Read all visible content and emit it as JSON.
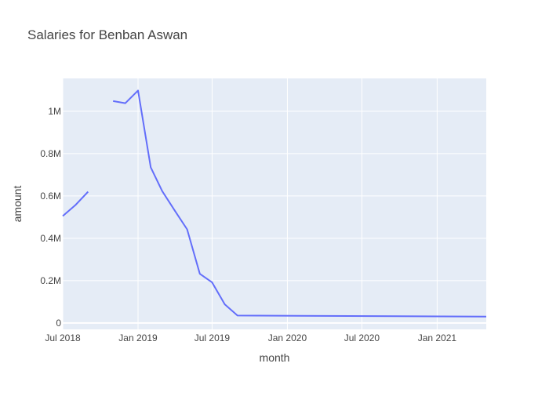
{
  "chart_data": {
    "type": "line",
    "title": "Salaries for Benban Aswan",
    "xlabel": "month",
    "ylabel": "amount",
    "x_type": "date",
    "xlim": [
      "2018-07-01",
      "2021-05-01"
    ],
    "ylim": [
      -30000,
      1155000
    ],
    "x_ticks": [
      {
        "value": "2018-07-01",
        "label": "Jul 2018"
      },
      {
        "value": "2019-01-01",
        "label": "Jan 2019"
      },
      {
        "value": "2019-07-01",
        "label": "Jul 2019"
      },
      {
        "value": "2020-01-01",
        "label": "Jan 2020"
      },
      {
        "value": "2020-07-01",
        "label": "Jul 2020"
      },
      {
        "value": "2021-01-01",
        "label": "Jan 2021"
      }
    ],
    "y_ticks": [
      {
        "value": 0,
        "label": "0"
      },
      {
        "value": 200000,
        "label": "0.2M"
      },
      {
        "value": 400000,
        "label": "0.4M"
      },
      {
        "value": 600000,
        "label": "0.6M"
      },
      {
        "value": 800000,
        "label": "0.8M"
      },
      {
        "value": 1000000,
        "label": "1M"
      }
    ],
    "grid": true,
    "colors": {
      "line": "#636efa",
      "plot_bg": "#e5ecf6",
      "grid": "#ffffff"
    },
    "series": [
      {
        "points": [
          {
            "x": "2018-07-01",
            "y": 505000
          },
          {
            "x": "2018-08-01",
            "y": 557000
          },
          {
            "x": "2018-09-01",
            "y": 620000
          },
          {
            "x": "2018-10-01",
            "y": null
          },
          {
            "x": "2018-11-01",
            "y": 1048000
          },
          {
            "x": "2018-12-01",
            "y": 1038000
          },
          {
            "x": "2019-01-01",
            "y": 1098000
          },
          {
            "x": "2019-02-01",
            "y": 735000
          },
          {
            "x": "2019-03-01",
            "y": 623000
          },
          {
            "x": "2019-04-01",
            "y": 530000
          },
          {
            "x": "2019-05-01",
            "y": 442000
          },
          {
            "x": "2019-06-01",
            "y": 232000
          },
          {
            "x": "2019-07-01",
            "y": 192000
          },
          {
            "x": "2019-08-01",
            "y": 88000
          },
          {
            "x": "2019-09-01",
            "y": 35000
          },
          {
            "x": "2021-05-01",
            "y": 30000
          }
        ]
      }
    ]
  }
}
